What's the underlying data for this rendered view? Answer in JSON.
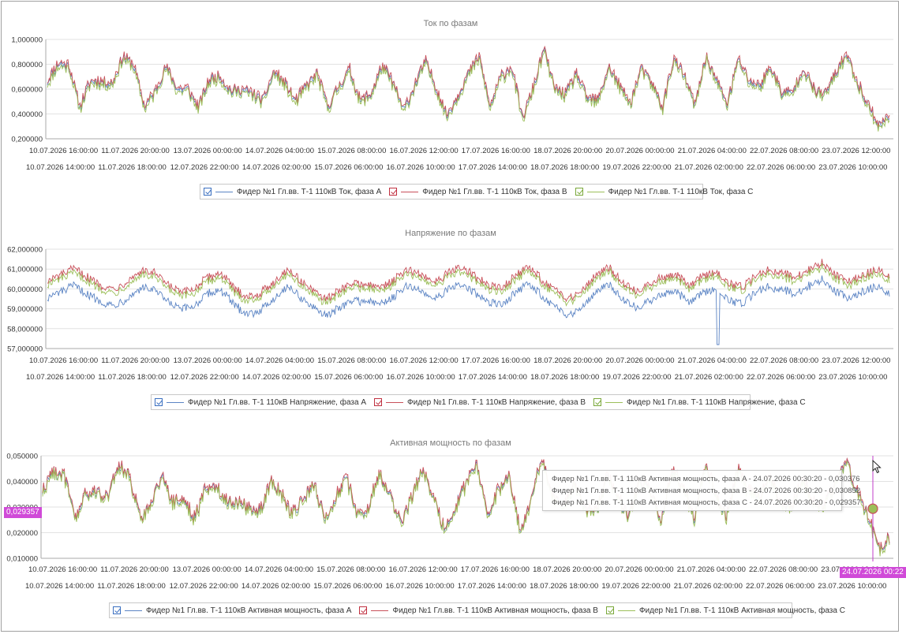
{
  "x_labels_row1": [
    "10.07.2026 16:00:00",
    "11.07.2026 20:00:00",
    "13.07.2026 00:00:00",
    "14.07.2026 04:00:00",
    "15.07.2026 08:00:00",
    "16.07.2026 12:00:00",
    "17.07.2026 16:00:00",
    "18.07.2026 20:00:00",
    "20.07.2026 00:00:00",
    "21.07.2026 04:00:00",
    "22.07.2026 08:00:00",
    "23.07.2026 12:00:00"
  ],
  "x_labels_row2": [
    "10.07.2026 14:00:00",
    "11.07.2026 18:00:00",
    "12.07.2026 22:00:00",
    "14.07.2026 02:00:00",
    "15.07.2026 06:00:00",
    "16.07.2026 10:00:00",
    "17.07.2026 14:00:00",
    "18.07.2026 18:00:00",
    "19.07.2026 22:00:00",
    "21.07.2026 02:00:00",
    "22.07.2026 06:00:00",
    "23.07.2026 10:00:00"
  ],
  "colors": {
    "a": "#5b84c4",
    "b": "#c8505a",
    "c": "#9cbf5a",
    "crosshair": "#c03cc8",
    "grid": "#e2e2e2",
    "axis": "#a8a8a8"
  },
  "chart_data": [
    {
      "type": "line",
      "title": "Ток по фазам",
      "ylim": [
        0.2,
        1.0
      ],
      "yticks": [
        "0,200000",
        "0,400000",
        "0,600000",
        "0,800000",
        "1,000000"
      ],
      "base": [
        0.66,
        0.8,
        0.79,
        0.45,
        0.66,
        0.66,
        0.64,
        0.86,
        0.79,
        0.45,
        0.58,
        0.78,
        0.6,
        0.6,
        0.45,
        0.67,
        0.7,
        0.58,
        0.59,
        0.56,
        0.5,
        0.74,
        0.64,
        0.5,
        0.62,
        0.72,
        0.45,
        0.62,
        0.75,
        0.5,
        0.56,
        0.78,
        0.65,
        0.42,
        0.62,
        0.82,
        0.61,
        0.38,
        0.54,
        0.72,
        0.86,
        0.45,
        0.69,
        0.78,
        0.36,
        0.6,
        0.92,
        0.6,
        0.55,
        0.72,
        0.52,
        0.5,
        0.78,
        0.62,
        0.48,
        0.76,
        0.64,
        0.45,
        0.84,
        0.7,
        0.46,
        0.86,
        0.66,
        0.48,
        0.84,
        0.66,
        0.62,
        0.78,
        0.57,
        0.56,
        0.77,
        0.59,
        0.55,
        0.72,
        0.88,
        0.66,
        0.48,
        0.3,
        0.38
      ],
      "series": [
        {
          "name": "Фидер №1 Гл.вв. Т-1 110кВ Ток, фаза A",
          "offset": 0.0
        },
        {
          "name": "Фидер №1 Гл.вв. Т-1 110кВ Ток, фаза B",
          "offset": 0.015
        },
        {
          "name": "Фидер №1 Гл.вв. Т-1 110кВ Ток, фаза C",
          "offset": -0.02
        }
      ]
    },
    {
      "type": "line",
      "title": "Напряжение по фазам",
      "ylim": [
        57.0,
        62.0
      ],
      "yticks": [
        "57,000000",
        "58,000000",
        "59,000000",
        "60,000000",
        "61,000000",
        "62,000000"
      ],
      "base": [
        60.2,
        60.5,
        60.8,
        60.4,
        60.0,
        59.8,
        60.2,
        60.7,
        60.6,
        60.0,
        59.6,
        59.8,
        60.4,
        60.6,
        59.8,
        59.4,
        59.6,
        60.2,
        60.8,
        60.2,
        59.6,
        59.3,
        59.8,
        60.1,
        60.0,
        59.9,
        60.3,
        60.8,
        60.5,
        60.2,
        60.6,
        60.9,
        60.4,
        60.0,
        59.8,
        60.5,
        60.9,
        60.3,
        59.7,
        59.3,
        59.8,
        60.5,
        60.9,
        60.2,
        59.7,
        60.0,
        60.4,
        60.5,
        60.0,
        60.4,
        60.7,
        60.1,
        59.9,
        60.5,
        60.8,
        60.6,
        60.4,
        60.8,
        61.1,
        60.5,
        60.2,
        60.5,
        60.8,
        60.4
      ],
      "series": [
        {
          "name": "Фидер №1 Гл.вв. Т-1 110кВ Напряжение, фаза A",
          "offset": -0.65
        },
        {
          "name": "Фидер №1 Гл.вв. Т-1 110кВ Напряжение, фаза B",
          "offset": 0.2
        },
        {
          "name": "Фидер №1 Гл.вв. Т-1 110кВ Напряжение, фаза C",
          "offset": 0.0
        }
      ]
    },
    {
      "type": "line",
      "title": "Активная мощность по фазам",
      "ylim": [
        0.01,
        0.05
      ],
      "yticks": [
        "0,010000",
        "0,020000",
        "0,030000",
        "0,040000",
        "0,050000"
      ],
      "base": [
        0.036,
        0.044,
        0.042,
        0.025,
        0.035,
        0.036,
        0.034,
        0.046,
        0.042,
        0.025,
        0.032,
        0.042,
        0.032,
        0.033,
        0.025,
        0.037,
        0.038,
        0.032,
        0.032,
        0.03,
        0.028,
        0.04,
        0.035,
        0.027,
        0.033,
        0.039,
        0.025,
        0.034,
        0.041,
        0.027,
        0.03,
        0.043,
        0.035,
        0.023,
        0.034,
        0.045,
        0.034,
        0.021,
        0.03,
        0.039,
        0.047,
        0.025,
        0.037,
        0.042,
        0.02,
        0.033,
        0.05,
        0.033,
        0.03,
        0.039,
        0.029,
        0.028,
        0.042,
        0.034,
        0.026,
        0.041,
        0.035,
        0.025,
        0.045,
        0.038,
        0.025,
        0.046,
        0.036,
        0.026,
        0.045,
        0.036,
        0.034,
        0.042,
        0.031,
        0.03,
        0.041,
        0.032,
        0.03,
        0.039,
        0.048,
        0.036,
        0.027,
        0.013,
        0.018
      ],
      "series": [
        {
          "name": "Фидер №1 Гл.вв. Т-1 110кВ Активная мощность, фаза A",
          "offset": 0.0
        },
        {
          "name": "Фидер №1 Гл.вв. Т-1 110кВ Активная мощность, фаза B",
          "offset": 0.0006
        },
        {
          "name": "Фидер №1 Гл.вв. Т-1 110кВ Активная мощность, фаза C",
          "offset": -0.0008
        }
      ],
      "crosshair": {
        "time_label": "24.07.2026 00:22",
        "value_label": "0,029357",
        "value": 0.029357
      },
      "tooltip": [
        "Фидер №1 Гл.вв. Т-1 110кВ Активная мощность, фаза A - 24.07.2026 00:30:20 - 0,030376",
        "Фидер №1 Гл.вв. Т-1 110кВ Активная мощность, фаза B - 24.07.2026 00:30:20 - 0,030852",
        "Фидер №1 Гл.вв. Т-1 110кВ Активная мощность, фаза C - 24.07.2026 00:30:20 - 0,029357"
      ]
    }
  ]
}
